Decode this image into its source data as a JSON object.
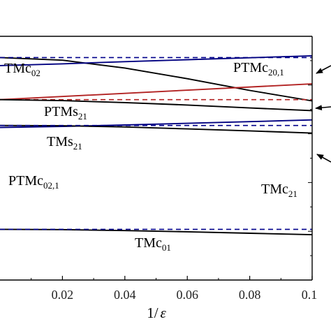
{
  "chart_data": {
    "type": "line",
    "title": "",
    "xlabel": "1/",
    "xlabel_symbol": "ε",
    "xlim": [
      0,
      0.1
    ],
    "ylim": [
      0,
      1
    ],
    "x_ticks": [
      0.02,
      0.04,
      0.06,
      0.08,
      0.1
    ],
    "x_tick_labels": [
      "0.02",
      "0.04",
      "0.06",
      "0.08",
      "0.1"
    ],
    "grid": false,
    "legend": "none",
    "series": [
      {
        "name": "TMc02",
        "color": "#000000",
        "style": "solid",
        "x": [
          0,
          0.02,
          0.04,
          0.06,
          0.08,
          0.1
        ],
        "y": [
          0.913,
          0.902,
          0.87,
          0.826,
          0.778,
          0.735
        ]
      },
      {
        "name": "TMc02",
        "color": "#00008b",
        "style": "dashed",
        "x": [
          0,
          0.1
        ],
        "y": [
          0.913,
          0.913
        ]
      },
      {
        "name": "PTMc20,1",
        "color": "#000080",
        "style": "solid",
        "x": [
          0,
          0.02,
          0.04,
          0.06,
          0.08,
          0.1
        ],
        "y": [
          0.88,
          0.887,
          0.896,
          0.904,
          0.912,
          0.92
        ]
      },
      {
        "name": "PTMs21",
        "color": "#b22222",
        "style": "solid",
        "x": [
          0,
          0.1
        ],
        "y": [
          0.74,
          0.805
        ]
      },
      {
        "name": "PTMs21",
        "color": "#b22222",
        "style": "dashed",
        "x": [
          0,
          0.1
        ],
        "y": [
          0.74,
          0.74
        ]
      },
      {
        "name": "TMs21",
        "color": "#000000",
        "style": "solid",
        "x": [
          0,
          0.02,
          0.04,
          0.06,
          0.08,
          0.1
        ],
        "y": [
          0.74,
          0.736,
          0.728,
          0.718,
          0.706,
          0.695
        ]
      },
      {
        "name": "PTMc02,1",
        "color": "#000080",
        "style": "solid",
        "x": [
          0,
          0.02,
          0.04,
          0.06,
          0.08,
          0.1
        ],
        "y": [
          0.626,
          0.63,
          0.636,
          0.643,
          0.65,
          0.657
        ]
      },
      {
        "name": "TMc21",
        "color": "#000000",
        "style": "solid",
        "x": [
          0,
          0.02,
          0.04,
          0.06,
          0.08,
          0.1
        ],
        "y": [
          0.634,
          0.633,
          0.628,
          0.62,
          0.612,
          0.603
        ]
      },
      {
        "name": "TMc21",
        "color": "#00008b",
        "style": "dashed",
        "x": [
          0,
          0.1
        ],
        "y": [
          0.634,
          0.634
        ]
      },
      {
        "name": "TMc01",
        "color": "#000000",
        "style": "solid",
        "x": [
          0,
          0.02,
          0.04,
          0.06,
          0.08,
          0.1
        ],
        "y": [
          0.208,
          0.207,
          0.203,
          0.198,
          0.192,
          0.186
        ]
      },
      {
        "name": "TMc01",
        "color": "#00008b",
        "style": "dashed",
        "x": [
          0,
          0.1
        ],
        "y": [
          0.208,
          0.208
        ]
      }
    ],
    "annotations": [
      {
        "base": "TMc",
        "sub": "02"
      },
      {
        "base": "PTMc",
        "sub": "20,1"
      },
      {
        "base": "PTMs",
        "sub": "21"
      },
      {
        "base": "TMs",
        "sub": "21"
      },
      {
        "base": "PTMc",
        "sub": "02,1"
      },
      {
        "base": "TMc",
        "sub": "21"
      },
      {
        "base": "TMc",
        "sub": "01"
      }
    ],
    "arrows": 3
  }
}
